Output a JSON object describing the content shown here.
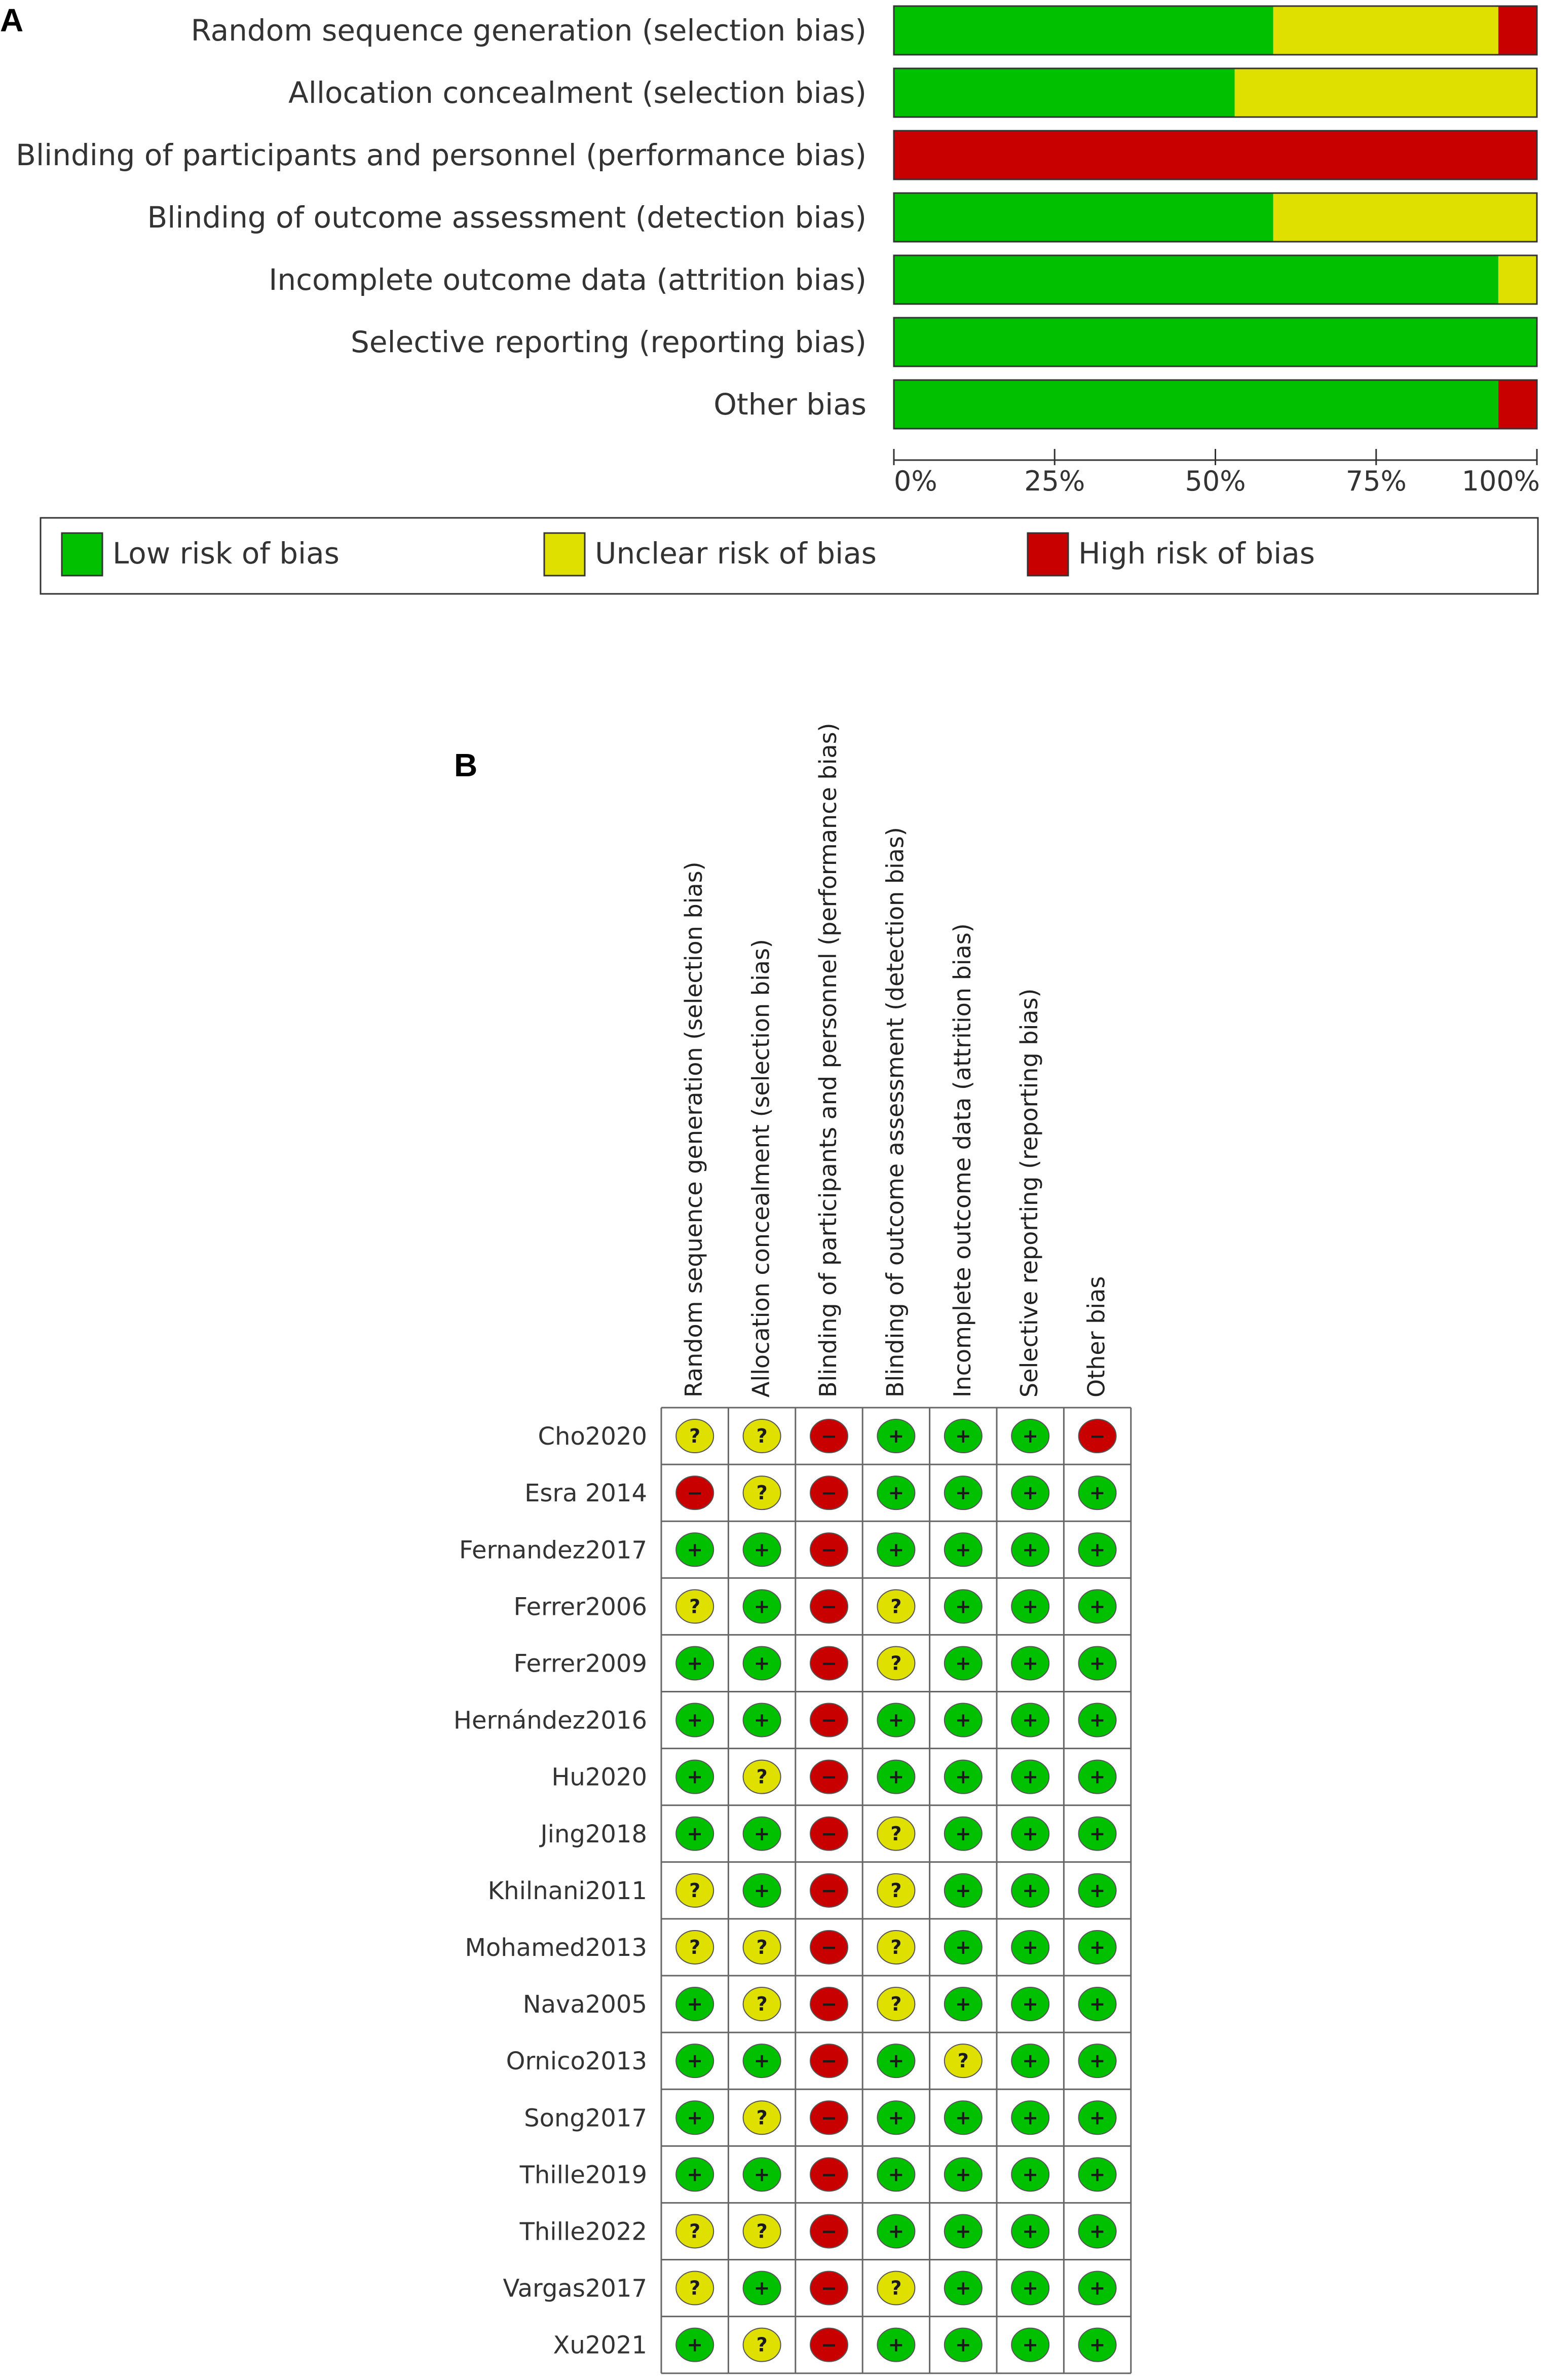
{
  "panel_a_label": "A",
  "panel_b_label": "B",
  "colors": {
    "low": "#00c000",
    "unclear": "#e0e000",
    "high": "#c80000"
  },
  "chart_data": [
    {
      "type": "bar",
      "stacked": true,
      "orientation": "horizontal",
      "categories": [
        "Random sequence generation (selection bias)",
        "Allocation concealment (selection bias)",
        "Blinding of participants and personnel (performance bias)",
        "Blinding of outcome assessment (detection bias)",
        "Incomplete outcome data (attrition bias)",
        "Selective reporting (reporting bias)",
        "Other bias"
      ],
      "series": [
        {
          "name": "Low risk of bias",
          "key": "low",
          "values": [
            59,
            53,
            0,
            59,
            94,
            100,
            94
          ]
        },
        {
          "name": "Unclear risk of bias",
          "key": "unclear",
          "values": [
            35,
            47,
            0,
            41,
            6,
            0,
            0
          ]
        },
        {
          "name": "High risk of bias",
          "key": "high",
          "values": [
            6,
            0,
            100,
            0,
            0,
            0,
            6
          ]
        }
      ],
      "xlim": [
        0,
        100
      ],
      "xticks": [
        "0%",
        "25%",
        "50%",
        "75%",
        "100%"
      ],
      "legend_position": "bottom"
    },
    {
      "type": "table",
      "columns": [
        "Random sequence generation (selection bias)",
        "Allocation concealment (selection bias)",
        "Blinding of participants and personnel (performance bias)",
        "Blinding of outcome assessment (detection bias)",
        "Incomplete outcome data (attrition bias)",
        "Selective reporting (reporting bias)",
        "Other bias"
      ],
      "symbols": {
        "low": "+",
        "unclear": "?",
        "high": "−"
      },
      "rows": [
        {
          "study": "Cho2020",
          "ratings": [
            "unclear",
            "unclear",
            "high",
            "low",
            "low",
            "low",
            "high"
          ]
        },
        {
          "study": "Esra 2014",
          "ratings": [
            "high",
            "unclear",
            "high",
            "low",
            "low",
            "low",
            "low"
          ]
        },
        {
          "study": "Fernandez2017",
          "ratings": [
            "low",
            "low",
            "high",
            "low",
            "low",
            "low",
            "low"
          ]
        },
        {
          "study": "Ferrer2006",
          "ratings": [
            "unclear",
            "low",
            "high",
            "unclear",
            "low",
            "low",
            "low"
          ]
        },
        {
          "study": "Ferrer2009",
          "ratings": [
            "low",
            "low",
            "high",
            "unclear",
            "low",
            "low",
            "low"
          ]
        },
        {
          "study": "Hernández2016",
          "ratings": [
            "low",
            "low",
            "high",
            "low",
            "low",
            "low",
            "low"
          ]
        },
        {
          "study": "Hu2020",
          "ratings": [
            "low",
            "unclear",
            "high",
            "low",
            "low",
            "low",
            "low"
          ]
        },
        {
          "study": "Jing2018",
          "ratings": [
            "low",
            "low",
            "high",
            "unclear",
            "low",
            "low",
            "low"
          ]
        },
        {
          "study": "Khilnani2011",
          "ratings": [
            "unclear",
            "low",
            "high",
            "unclear",
            "low",
            "low",
            "low"
          ]
        },
        {
          "study": "Mohamed2013",
          "ratings": [
            "unclear",
            "unclear",
            "high",
            "unclear",
            "low",
            "low",
            "low"
          ]
        },
        {
          "study": "Nava2005",
          "ratings": [
            "low",
            "unclear",
            "high",
            "unclear",
            "low",
            "low",
            "low"
          ]
        },
        {
          "study": "Ornico2013",
          "ratings": [
            "low",
            "low",
            "high",
            "low",
            "unclear",
            "low",
            "low"
          ]
        },
        {
          "study": "Song2017",
          "ratings": [
            "low",
            "unclear",
            "high",
            "low",
            "low",
            "low",
            "low"
          ]
        },
        {
          "study": "Thille2019",
          "ratings": [
            "low",
            "low",
            "high",
            "low",
            "low",
            "low",
            "low"
          ]
        },
        {
          "study": "Thille2022",
          "ratings": [
            "unclear",
            "unclear",
            "high",
            "low",
            "low",
            "low",
            "low"
          ]
        },
        {
          "study": "Vargas2017",
          "ratings": [
            "unclear",
            "low",
            "high",
            "unclear",
            "low",
            "low",
            "low"
          ]
        },
        {
          "study": "Xu2021",
          "ratings": [
            "low",
            "unclear",
            "high",
            "low",
            "low",
            "low",
            "low"
          ]
        }
      ]
    }
  ]
}
